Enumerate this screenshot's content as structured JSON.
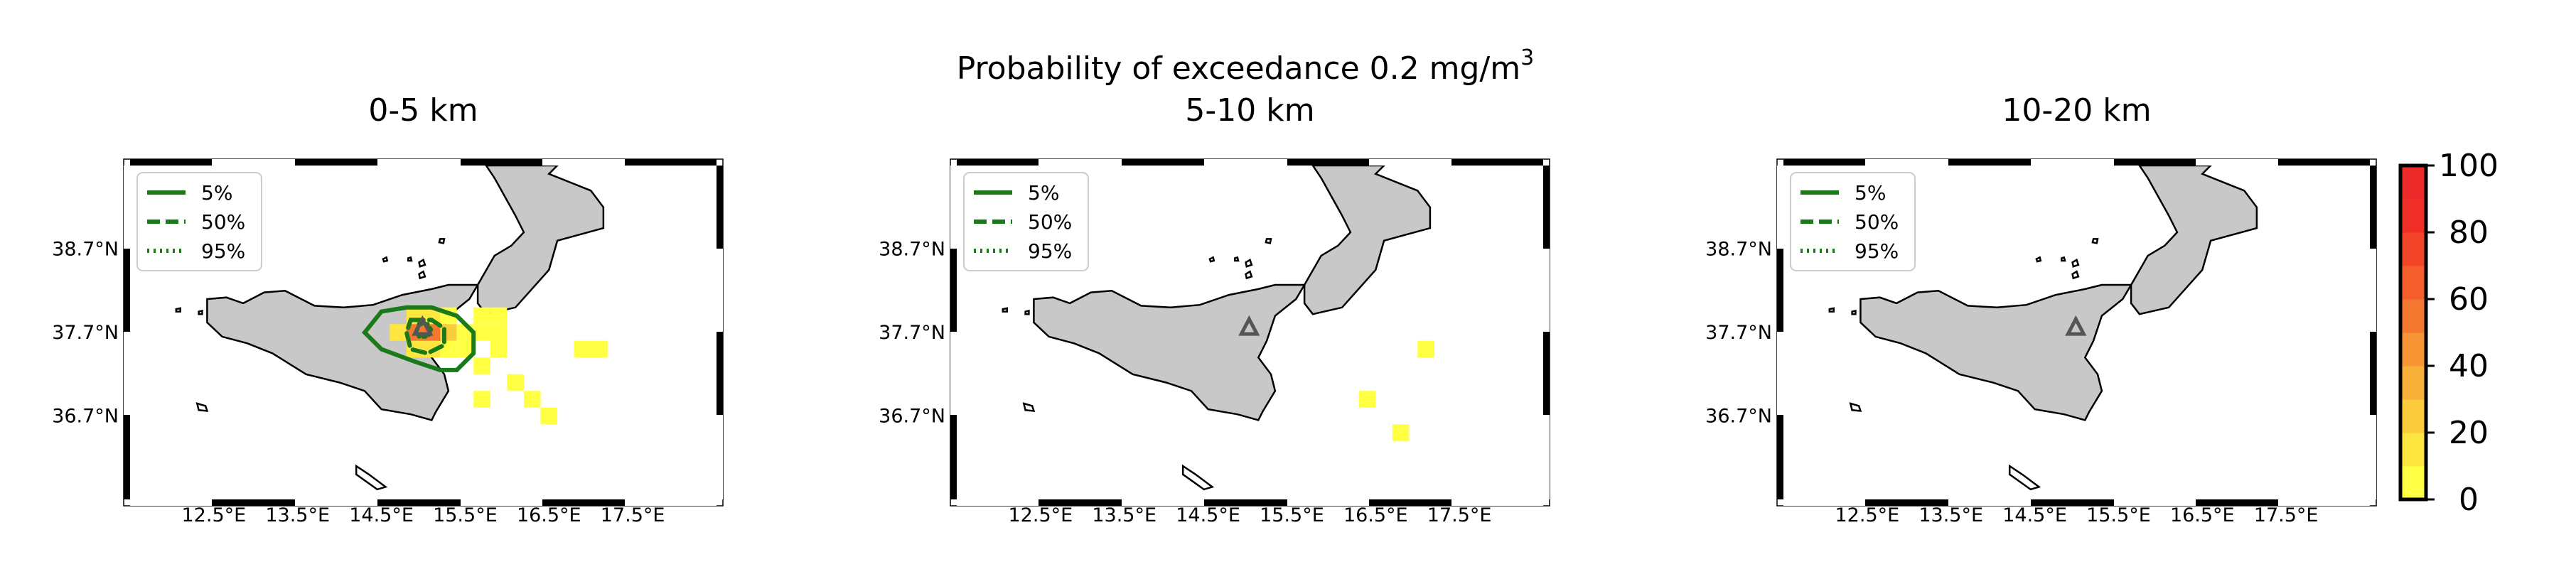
{
  "figure": {
    "suptitle": "Probability of exceedance 0.2 mg/m",
    "suptitle_sup": "3"
  },
  "colors": {
    "land": "#c8c8c8",
    "coast": "#000000",
    "contour": "#1a7a1a",
    "vent": "#555555",
    "frame_dark": "#000000",
    "frame_light": "#ffffff"
  },
  "chart_data": [
    {
      "type": "heatmap",
      "title": "0-5 km",
      "xlabel": "",
      "ylabel": "",
      "xlim": [
        11.5,
        18.5
      ],
      "ylim": [
        35.7,
        39.7
      ],
      "x_ticks": [
        "12.5°E",
        "13.5°E",
        "14.5°E",
        "15.5°E",
        "16.5°E",
        "17.5°E"
      ],
      "y_ticks": [
        "38.7°N",
        "37.7°N",
        "36.7°N"
      ],
      "legend": {
        "placement": "upper-left",
        "entries": [
          "5%",
          "50%",
          "95%"
        ]
      },
      "vent": {
        "lon": 14.99,
        "lat": 37.75
      },
      "cells": [
        {
          "lon": 14.9,
          "lat": 37.7,
          "p": 55
        },
        {
          "lon": 15.1,
          "lat": 37.7,
          "p": 50
        },
        {
          "lon": 15.3,
          "lat": 37.7,
          "p": 22
        },
        {
          "lon": 14.7,
          "lat": 37.7,
          "p": 12
        },
        {
          "lon": 14.9,
          "lat": 37.9,
          "p": 18
        },
        {
          "lon": 15.1,
          "lat": 37.9,
          "p": 14
        },
        {
          "lon": 14.9,
          "lat": 37.5,
          "p": 18
        },
        {
          "lon": 15.1,
          "lat": 37.5,
          "p": 10
        },
        {
          "lon": 15.3,
          "lat": 37.9,
          "p": 4
        },
        {
          "lon": 15.5,
          "lat": 37.7,
          "p": 4
        },
        {
          "lon": 15.7,
          "lat": 37.7,
          "p": 2
        },
        {
          "lon": 15.7,
          "lat": 37.9,
          "p": 2
        },
        {
          "lon": 15.9,
          "lat": 37.9,
          "p": 2
        },
        {
          "lon": 15.9,
          "lat": 37.7,
          "p": 1
        },
        {
          "lon": 15.9,
          "lat": 37.5,
          "p": 1
        },
        {
          "lon": 15.5,
          "lat": 37.5,
          "p": 3
        },
        {
          "lon": 15.3,
          "lat": 37.5,
          "p": 5
        },
        {
          "lon": 15.7,
          "lat": 37.3,
          "p": 1
        },
        {
          "lon": 15.7,
          "lat": 36.9,
          "p": 1
        },
        {
          "lon": 16.1,
          "lat": 37.1,
          "p": 1
        },
        {
          "lon": 16.3,
          "lat": 36.9,
          "p": 1
        },
        {
          "lon": 16.5,
          "lat": 36.7,
          "p": 1
        },
        {
          "lon": 16.9,
          "lat": 37.5,
          "p": 1
        },
        {
          "lon": 17.1,
          "lat": 37.5,
          "p": 1
        }
      ],
      "contours": [
        {
          "level": "5%",
          "style": "solid",
          "lon": [
            14.5,
            14.8,
            15.1,
            15.4,
            15.6,
            15.6,
            15.4,
            15.2,
            14.9,
            14.5,
            14.3,
            14.5
          ],
          "lat": [
            37.95,
            38.0,
            38.0,
            37.9,
            37.7,
            37.45,
            37.25,
            37.25,
            37.35,
            37.5,
            37.7,
            37.95
          ]
        },
        {
          "level": "50%",
          "style": "dashed",
          "lon": [
            14.85,
            15.1,
            15.25,
            15.25,
            15.05,
            14.85,
            14.8,
            14.85
          ],
          "lat": [
            37.85,
            37.85,
            37.75,
            37.55,
            37.45,
            37.5,
            37.7,
            37.85
          ]
        },
        {
          "level": "95%",
          "style": "dotted",
          "lon": [
            14.95,
            15.05,
            15.1,
            15.05,
            14.95,
            14.92,
            14.95
          ],
          "lat": [
            37.8,
            37.8,
            37.72,
            37.65,
            37.65,
            37.72,
            37.8
          ]
        }
      ]
    },
    {
      "type": "heatmap",
      "title": "5-10 km",
      "xlabel": "",
      "ylabel": "",
      "xlim": [
        11.5,
        18.5
      ],
      "ylim": [
        35.7,
        39.7
      ],
      "x_ticks": [
        "12.5°E",
        "13.5°E",
        "14.5°E",
        "15.5°E",
        "16.5°E",
        "17.5°E"
      ],
      "y_ticks": [
        "38.7°N",
        "37.7°N",
        "36.7°N"
      ],
      "legend": {
        "placement": "upper-left",
        "entries": [
          "5%",
          "50%",
          "95%"
        ]
      },
      "vent": {
        "lon": 14.99,
        "lat": 37.75
      },
      "cells": [
        {
          "lon": 17.1,
          "lat": 37.5,
          "p": 1
        },
        {
          "lon": 16.4,
          "lat": 36.9,
          "p": 1
        },
        {
          "lon": 16.8,
          "lat": 36.5,
          "p": 1
        }
      ],
      "contours": []
    },
    {
      "type": "heatmap",
      "title": "10-20 km",
      "xlabel": "",
      "ylabel": "",
      "xlim": [
        11.5,
        18.5
      ],
      "ylim": [
        35.7,
        39.7
      ],
      "x_ticks": [
        "12.5°E",
        "13.5°E",
        "14.5°E",
        "15.5°E",
        "16.5°E",
        "17.5°E"
      ],
      "y_ticks": [
        "38.7°N",
        "37.7°N",
        "36.7°N"
      ],
      "legend": {
        "placement": "upper-left",
        "entries": [
          "5%",
          "50%",
          "95%"
        ]
      },
      "vent": {
        "lon": 14.99,
        "lat": 37.75
      },
      "cells": [],
      "contours": []
    }
  ],
  "colorbar": {
    "range": [
      0,
      100
    ],
    "ticks": [
      "0",
      "20",
      "40",
      "60",
      "80",
      "100"
    ],
    "colors": [
      "#ffff44",
      "#fde640",
      "#fbcc3c",
      "#f9b038",
      "#f79434",
      "#f57830",
      "#f35e2c",
      "#f14428",
      "#ef2e28",
      "#ec2a2a"
    ]
  },
  "coast": {
    "sicily": [
      [
        12.42,
        38.1
      ],
      [
        12.65,
        38.12
      ],
      [
        12.85,
        38.05
      ],
      [
        13.1,
        38.18
      ],
      [
        13.35,
        38.2
      ],
      [
        13.7,
        38.02
      ],
      [
        14.05,
        38.0
      ],
      [
        14.4,
        38.03
      ],
      [
        14.75,
        38.15
      ],
      [
        15.1,
        38.22
      ],
      [
        15.3,
        38.27
      ],
      [
        15.65,
        38.27
      ],
      [
        15.55,
        38.1
      ],
      [
        15.3,
        37.9
      ],
      [
        15.2,
        37.6
      ],
      [
        15.1,
        37.4
      ],
      [
        15.25,
        37.2
      ],
      [
        15.3,
        37.0
      ],
      [
        15.15,
        36.75
      ],
      [
        15.1,
        36.65
      ],
      [
        14.85,
        36.72
      ],
      [
        14.5,
        36.78
      ],
      [
        14.3,
        37.0
      ],
      [
        14.0,
        37.1
      ],
      [
        13.6,
        37.2
      ],
      [
        13.2,
        37.45
      ],
      [
        12.9,
        37.57
      ],
      [
        12.6,
        37.65
      ],
      [
        12.42,
        37.82
      ],
      [
        12.42,
        38.1
      ]
    ],
    "calabria": [
      [
        15.65,
        38.27
      ],
      [
        15.85,
        38.62
      ],
      [
        16.05,
        38.74
      ],
      [
        16.2,
        38.9
      ],
      [
        16.1,
        39.1
      ],
      [
        15.85,
        39.55
      ],
      [
        15.75,
        39.7
      ],
      [
        16.6,
        39.7
      ],
      [
        16.5,
        39.6
      ],
      [
        17.0,
        39.4
      ],
      [
        17.15,
        39.2
      ],
      [
        17.15,
        38.95
      ],
      [
        16.6,
        38.8
      ],
      [
        16.5,
        38.45
      ],
      [
        16.1,
        38.0
      ],
      [
        15.75,
        37.92
      ],
      [
        15.65,
        38.05
      ],
      [
        15.65,
        38.27
      ]
    ],
    "islands": [
      [
        [
          14.2,
          36.1
        ],
        [
          14.35,
          36.0
        ],
        [
          14.55,
          35.85
        ],
        [
          14.45,
          35.82
        ],
        [
          14.2,
          36.0
        ],
        [
          14.2,
          36.1
        ]
      ],
      [
        [
          12.3,
          36.85
        ],
        [
          12.4,
          36.82
        ],
        [
          12.42,
          36.76
        ],
        [
          12.32,
          36.77
        ],
        [
          12.3,
          36.85
        ]
      ],
      [
        [
          14.95,
          38.54
        ],
        [
          15.0,
          38.57
        ],
        [
          15.02,
          38.51
        ],
        [
          14.96,
          38.49
        ],
        [
          14.95,
          38.54
        ]
      ],
      [
        [
          14.82,
          38.59
        ],
        [
          14.85,
          38.6
        ],
        [
          14.86,
          38.56
        ],
        [
          14.82,
          38.56
        ],
        [
          14.82,
          38.59
        ]
      ],
      [
        [
          15.2,
          38.82
        ],
        [
          15.25,
          38.82
        ],
        [
          15.24,
          38.77
        ],
        [
          15.19,
          38.78
        ],
        [
          15.2,
          38.82
        ]
      ],
      [
        [
          14.95,
          38.4
        ],
        [
          15.0,
          38.43
        ],
        [
          15.02,
          38.37
        ],
        [
          14.96,
          38.35
        ],
        [
          14.95,
          38.4
        ]
      ],
      [
        [
          14.52,
          38.58
        ],
        [
          14.56,
          38.6
        ],
        [
          14.57,
          38.56
        ],
        [
          14.53,
          38.55
        ],
        [
          14.52,
          38.58
        ]
      ],
      [
        [
          12.05,
          37.98
        ],
        [
          12.1,
          37.99
        ],
        [
          12.1,
          37.95
        ],
        [
          12.05,
          37.95
        ],
        [
          12.05,
          37.98
        ]
      ],
      [
        [
          12.32,
          37.95
        ],
        [
          12.36,
          37.96
        ],
        [
          12.36,
          37.92
        ],
        [
          12.32,
          37.92
        ],
        [
          12.32,
          37.95
        ]
      ]
    ]
  }
}
